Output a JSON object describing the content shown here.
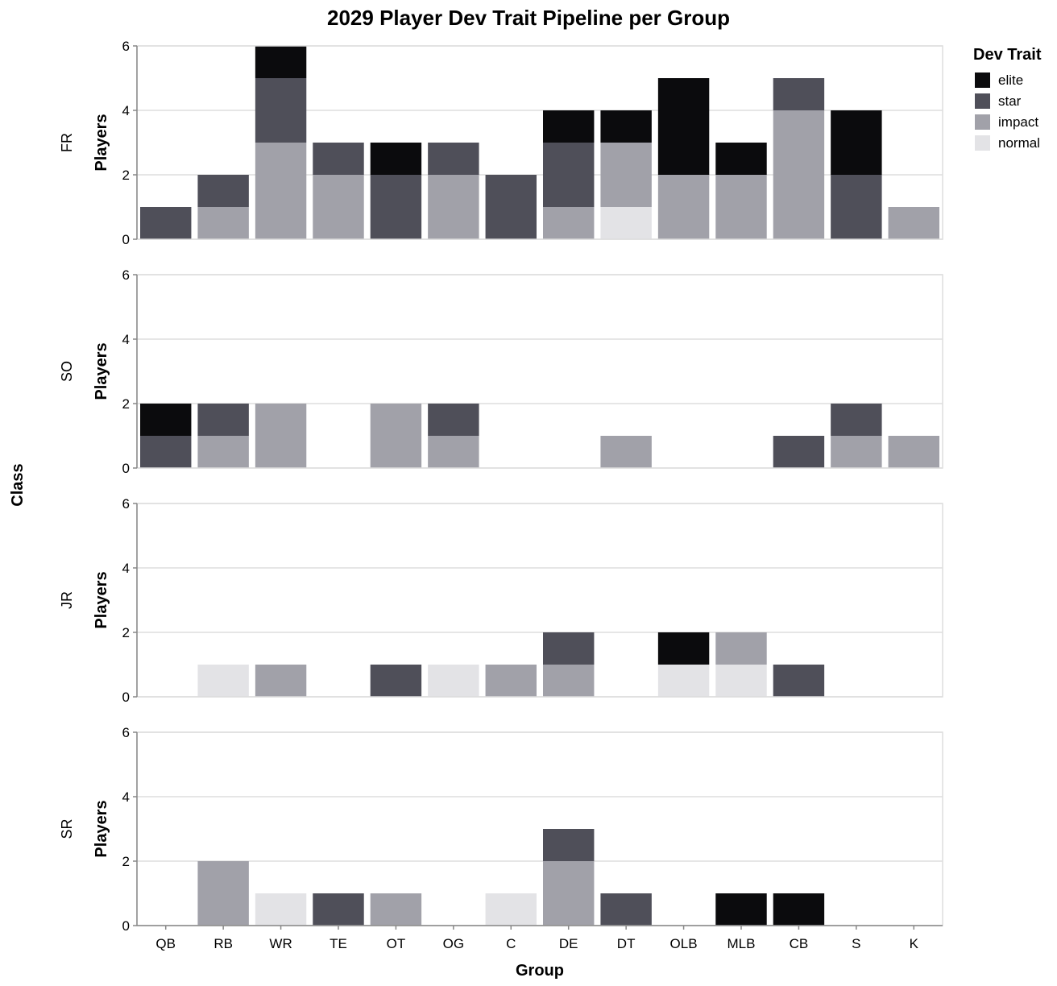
{
  "chart_data": {
    "type": "bar",
    "stacked": true,
    "title": "2029 Player Dev Trait Pipeline per Group",
    "xlabel": "Group",
    "ylabel": "Players",
    "row_facet_label": "Class",
    "ylim": [
      0,
      6
    ],
    "y_ticks": [
      0,
      2,
      4,
      6
    ],
    "grid": true,
    "legend": {
      "title": "Dev Trait",
      "placement": "top-right",
      "items": [
        {
          "name": "elite",
          "color": "#0b0b0d"
        },
        {
          "name": "star",
          "color": "#4f4f59"
        },
        {
          "name": "impact",
          "color": "#a1a1a9"
        },
        {
          "name": "normal",
          "color": "#e3e3e6"
        }
      ]
    },
    "categories": [
      "QB",
      "RB",
      "WR",
      "TE",
      "OT",
      "OG",
      "C",
      "DE",
      "DT",
      "OLB",
      "MLB",
      "CB",
      "S",
      "K"
    ],
    "facets": [
      {
        "label": "FR",
        "series": [
          {
            "name": "normal",
            "values": [
              0,
              0,
              0,
              0,
              0,
              0,
              0,
              0,
              1,
              0,
              0,
              0,
              0,
              0
            ]
          },
          {
            "name": "impact",
            "values": [
              0,
              1,
              3,
              2,
              0,
              2,
              0,
              1,
              2,
              2,
              2,
              4,
              0,
              1
            ]
          },
          {
            "name": "star",
            "values": [
              1,
              1,
              2,
              1,
              2,
              1,
              2,
              2,
              0,
              0,
              0,
              1,
              2,
              0
            ]
          },
          {
            "name": "elite",
            "values": [
              0,
              0,
              1,
              0,
              1,
              0,
              0,
              1,
              1,
              3,
              1,
              0,
              2,
              0
            ]
          }
        ]
      },
      {
        "label": "SO",
        "series": [
          {
            "name": "normal",
            "values": [
              0,
              0,
              0,
              0,
              0,
              0,
              0,
              0,
              0,
              0,
              0,
              0,
              0,
              0
            ]
          },
          {
            "name": "impact",
            "values": [
              0,
              1,
              2,
              0,
              2,
              1,
              0,
              0,
              1,
              0,
              0,
              0,
              1,
              1
            ]
          },
          {
            "name": "star",
            "values": [
              1,
              1,
              0,
              0,
              0,
              1,
              0,
              0,
              0,
              0,
              0,
              1,
              1,
              0
            ]
          },
          {
            "name": "elite",
            "values": [
              1,
              0,
              0,
              0,
              0,
              0,
              0,
              0,
              0,
              0,
              0,
              0,
              0,
              0
            ]
          }
        ]
      },
      {
        "label": "JR",
        "series": [
          {
            "name": "normal",
            "values": [
              0,
              1,
              0,
              0,
              0,
              1,
              0,
              0,
              0,
              1,
              1,
              0,
              0,
              0
            ]
          },
          {
            "name": "impact",
            "values": [
              0,
              0,
              1,
              0,
              0,
              0,
              1,
              1,
              0,
              0,
              1,
              0,
              0,
              0
            ]
          },
          {
            "name": "star",
            "values": [
              0,
              0,
              0,
              0,
              1,
              0,
              0,
              1,
              0,
              0,
              0,
              1,
              0,
              0
            ]
          },
          {
            "name": "elite",
            "values": [
              0,
              0,
              0,
              0,
              0,
              0,
              0,
              0,
              0,
              1,
              0,
              0,
              0,
              0
            ]
          }
        ]
      },
      {
        "label": "SR",
        "series": [
          {
            "name": "normal",
            "values": [
              0,
              0,
              1,
              0,
              0,
              0,
              1,
              0,
              0,
              0,
              0,
              0,
              0,
              0
            ]
          },
          {
            "name": "impact",
            "values": [
              0,
              2,
              0,
              0,
              1,
              0,
              0,
              2,
              0,
              0,
              0,
              0,
              0,
              0
            ]
          },
          {
            "name": "star",
            "values": [
              0,
              0,
              0,
              1,
              0,
              0,
              0,
              1,
              1,
              0,
              0,
              0,
              0,
              0
            ]
          },
          {
            "name": "elite",
            "values": [
              0,
              0,
              0,
              0,
              0,
              0,
              0,
              0,
              0,
              0,
              1,
              1,
              0,
              0
            ]
          }
        ]
      }
    ]
  }
}
